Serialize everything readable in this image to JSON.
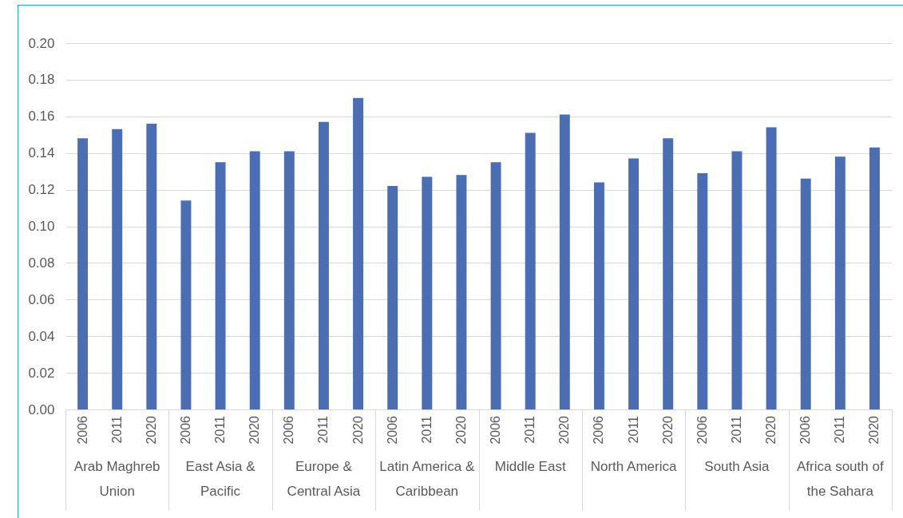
{
  "chart_data": {
    "type": "bar",
    "categories": [
      "Arab Maghreb Union",
      "East Asia & Pacific",
      "Europe & Central Asia",
      "Latin America & Caribbean",
      "Middle East",
      "North America",
      "South Asia",
      "Africa south of the Sahara"
    ],
    "series": [
      {
        "name": "2006",
        "color": "#4a6db4",
        "values": [
          0.148,
          0.114,
          0.141,
          0.122,
          0.135,
          0.124,
          0.129,
          0.126
        ]
      },
      {
        "name": "2011",
        "color": "#4a6db4",
        "values": [
          0.153,
          0.135,
          0.157,
          0.127,
          0.151,
          0.137,
          0.141,
          0.138
        ]
      },
      {
        "name": "2020",
        "color": "#4a6db4",
        "values": [
          0.156,
          0.141,
          0.17,
          0.128,
          0.161,
          0.148,
          0.154,
          0.143
        ]
      }
    ],
    "ylim": [
      0,
      0.2
    ],
    "yticks": [
      {
        "value": 0,
        "label": "0.00"
      },
      {
        "value": 0.02,
        "label": "0.02"
      },
      {
        "value": 0.04,
        "label": "0.04"
      },
      {
        "value": 0.06,
        "label": "0.06"
      },
      {
        "value": 0.08,
        "label": "0.08"
      },
      {
        "value": 0.1,
        "label": "0.10"
      },
      {
        "value": 0.12,
        "label": "0.12"
      },
      {
        "value": 0.14,
        "label": "0.14"
      },
      {
        "value": 0.16,
        "label": "0.16"
      },
      {
        "value": 0.18,
        "label": "0.18"
      },
      {
        "value": 0.2,
        "label": "0.20"
      }
    ],
    "grid": "y",
    "legend": false
  }
}
